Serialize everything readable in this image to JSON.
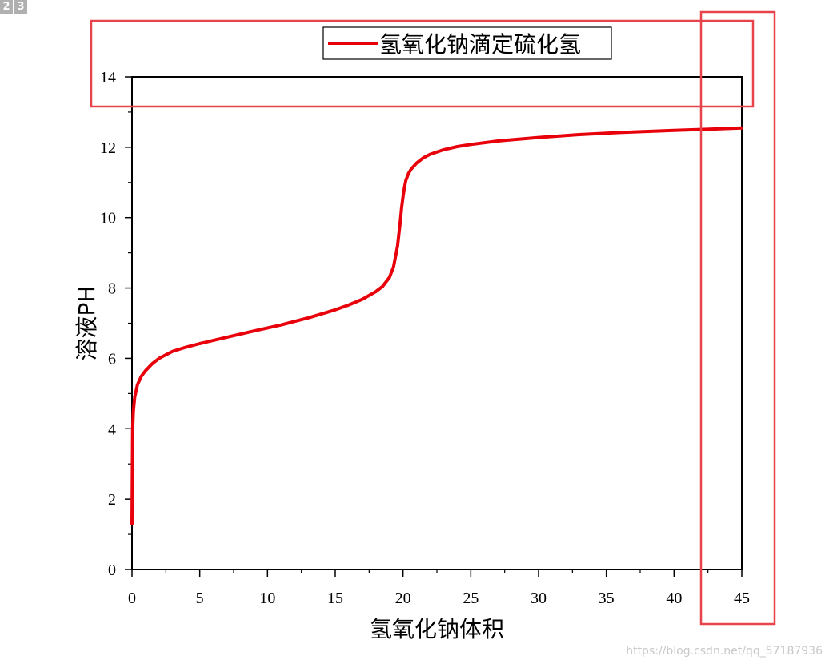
{
  "page_badges": [
    "2",
    "3"
  ],
  "watermark": "https://blog.csdn.net/qq_57187936",
  "colors": {
    "series": "#e8000a",
    "highlight": "#e8424a",
    "axis": "#000000"
  },
  "chart_data": {
    "type": "line",
    "xlabel": "氢氧化钠体积",
    "ylabel": "溶液PH",
    "xlim": [
      0,
      45
    ],
    "ylim": [
      0,
      14
    ],
    "xticks": [
      0,
      5,
      10,
      15,
      20,
      25,
      30,
      35,
      40,
      45
    ],
    "yticks": [
      0,
      2,
      4,
      6,
      8,
      10,
      12,
      14
    ],
    "grid": false,
    "legend": "top",
    "series": [
      {
        "name": "氢氧化钠滴定硫化氢",
        "x": [
          0,
          0.05,
          0.1,
          0.2,
          0.4,
          0.7,
          1,
          1.5,
          2,
          3,
          4,
          5,
          7,
          9,
          11,
          13,
          15,
          16,
          17,
          18,
          18.5,
          19,
          19.3,
          19.6,
          19.8,
          19.9,
          20,
          20.1,
          20.2,
          20.4,
          20.6,
          21,
          21.5,
          22,
          23,
          24,
          25,
          27,
          30,
          33,
          36,
          40,
          43,
          45
        ],
        "y": [
          1.3,
          4.0,
          4.5,
          4.9,
          5.25,
          5.5,
          5.65,
          5.85,
          6.0,
          6.2,
          6.32,
          6.42,
          6.6,
          6.78,
          6.95,
          7.15,
          7.38,
          7.52,
          7.68,
          7.9,
          8.05,
          8.3,
          8.6,
          9.2,
          9.9,
          10.3,
          10.6,
          10.85,
          11.05,
          11.25,
          11.38,
          11.55,
          11.7,
          11.8,
          11.93,
          12.02,
          12.08,
          12.18,
          12.28,
          12.36,
          12.42,
          12.48,
          12.52,
          12.55
        ]
      }
    ]
  },
  "annotations": [
    "highlight-box-top",
    "highlight-box-right"
  ]
}
